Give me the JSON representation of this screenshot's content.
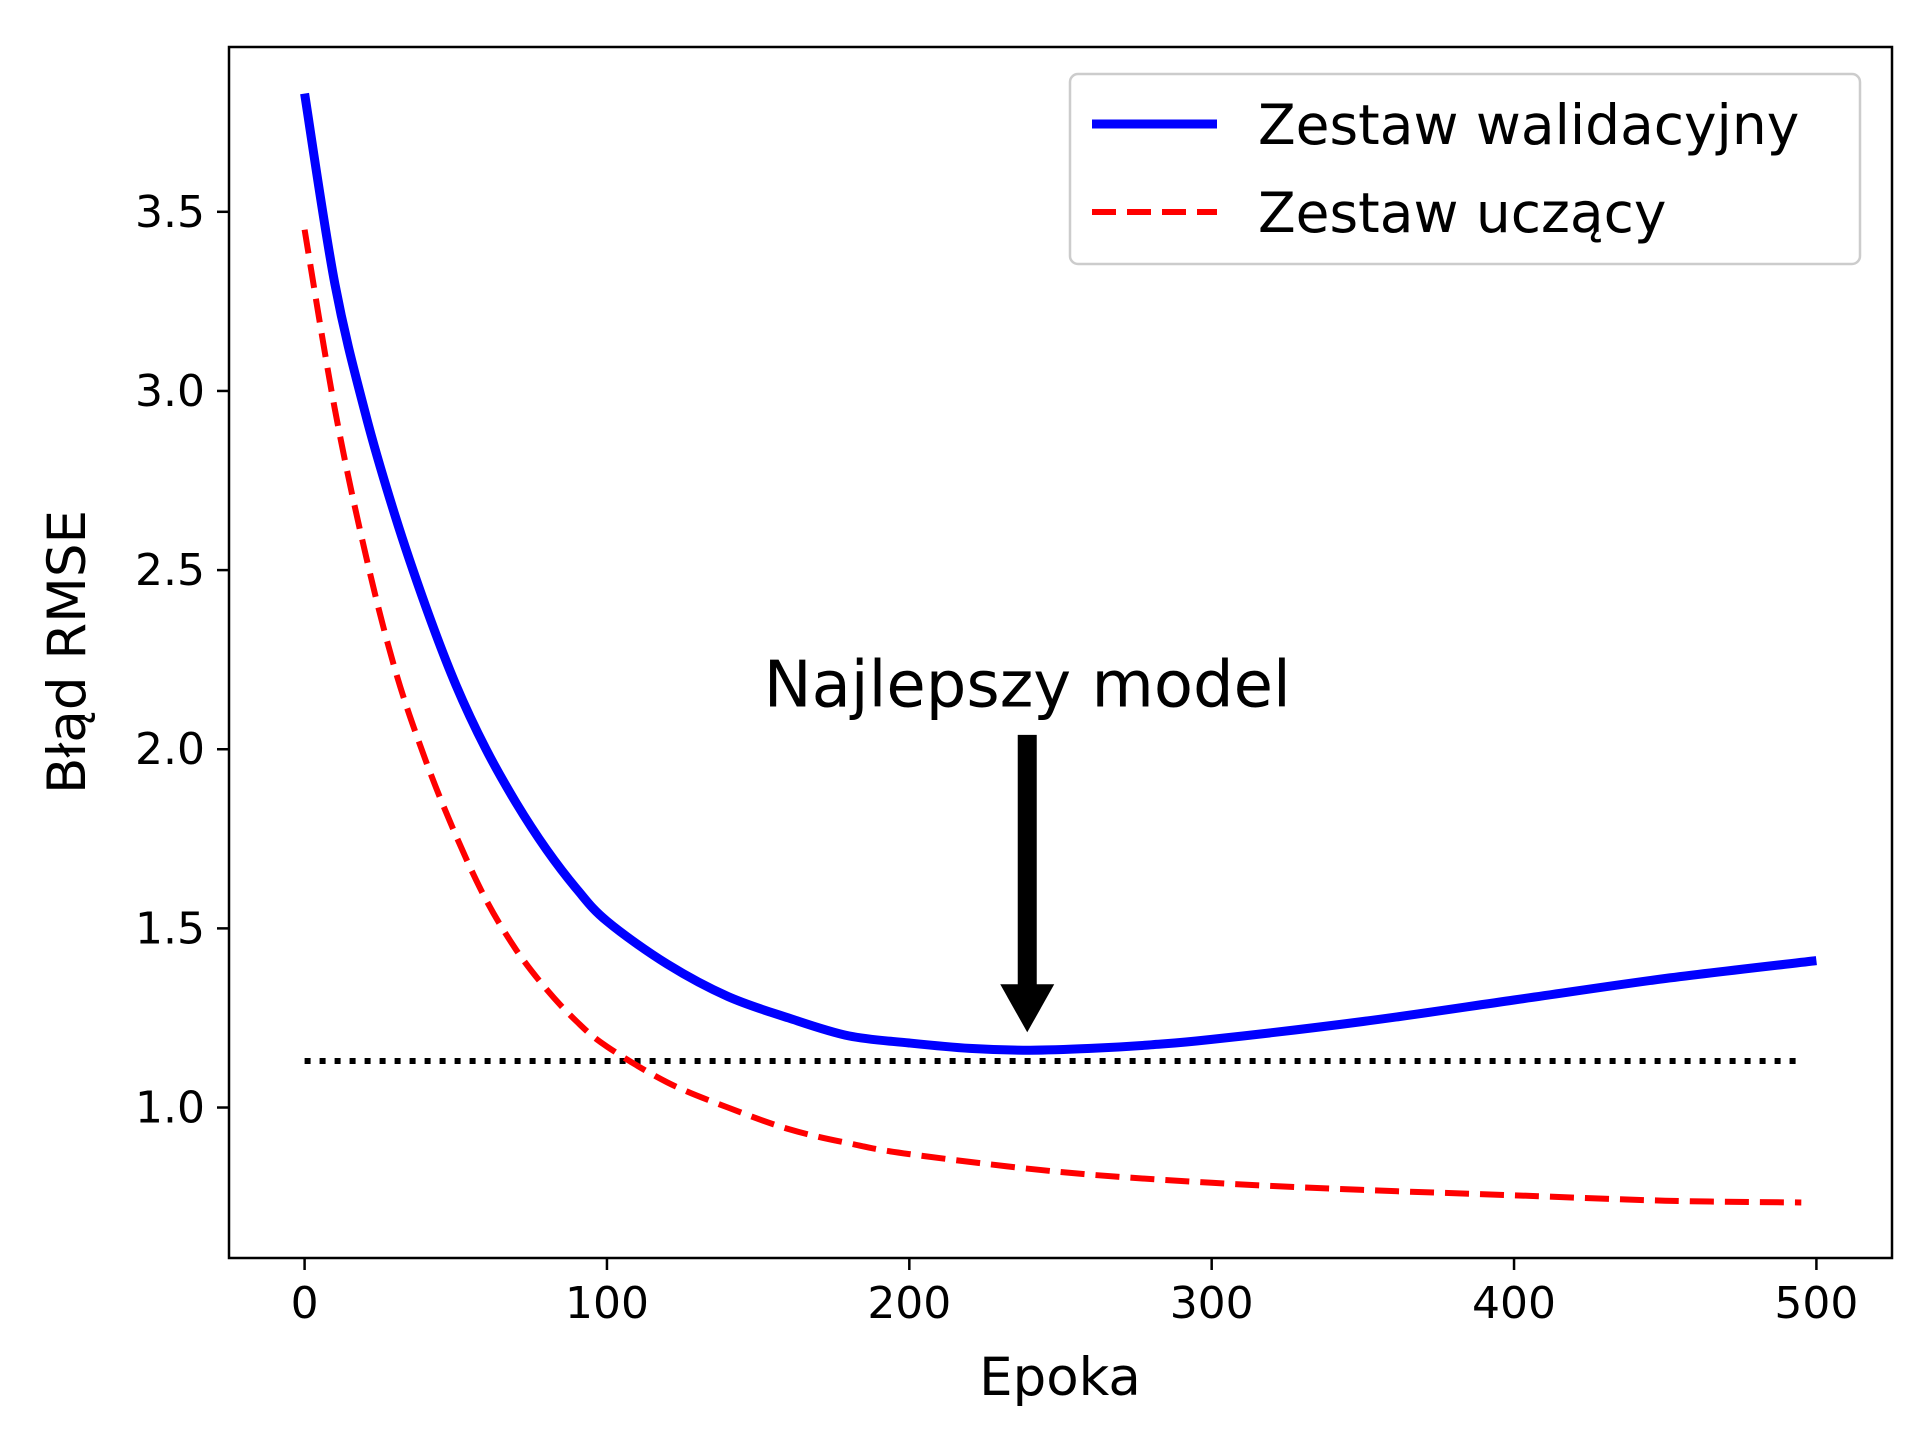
{
  "chart_data": {
    "type": "line",
    "title": "",
    "xlabel": "Epoka",
    "ylabel": "Błąd RMSE",
    "xlim": [
      -25,
      525
    ],
    "ylim": [
      0.58,
      3.96
    ],
    "x_ticks": [
      0,
      100,
      200,
      300,
      400,
      500
    ],
    "x_tick_labels": [
      "0",
      "100",
      "200",
      "300",
      "400",
      "500"
    ],
    "y_ticks": [
      1.0,
      1.5,
      2.0,
      2.5,
      3.0,
      3.5
    ],
    "y_tick_labels": [
      "1.0",
      "1.5",
      "2.0",
      "2.5",
      "3.0",
      "3.5"
    ],
    "grid": false,
    "legend_position": "top-right",
    "series": [
      {
        "name": "Zestaw walidacyjny",
        "color": "#0000ff",
        "style": "solid",
        "x": [
          0,
          10,
          20,
          30,
          40,
          50,
          60,
          70,
          80,
          90,
          100,
          120,
          140,
          160,
          180,
          200,
          220,
          240,
          260,
          280,
          300,
          350,
          400,
          450,
          500
        ],
        "y": [
          3.83,
          3.3,
          2.94,
          2.65,
          2.4,
          2.18,
          2.0,
          1.85,
          1.72,
          1.61,
          1.52,
          1.4,
          1.31,
          1.25,
          1.2,
          1.18,
          1.165,
          1.16,
          1.165,
          1.175,
          1.19,
          1.24,
          1.3,
          1.36,
          1.41
        ]
      },
      {
        "name": "Zestaw uczący",
        "color": "#ff0000",
        "style": "dashed",
        "x": [
          0,
          10,
          20,
          30,
          40,
          50,
          60,
          70,
          80,
          90,
          100,
          120,
          140,
          160,
          180,
          200,
          250,
          300,
          350,
          400,
          450,
          495
        ],
        "y": [
          3.45,
          2.95,
          2.55,
          2.22,
          1.97,
          1.76,
          1.58,
          1.44,
          1.33,
          1.24,
          1.17,
          1.07,
          1.0,
          0.94,
          0.9,
          0.87,
          0.82,
          0.79,
          0.77,
          0.755,
          0.74,
          0.735
        ]
      }
    ],
    "reference_line": {
      "y": 1.13,
      "x_start": 0,
      "x_end": 495,
      "color": "#000000",
      "style": "dotted"
    },
    "annotation": {
      "text": "Najlepszy model",
      "text_x": 239,
      "text_y": 2.18,
      "arrow_from_y": 2.04,
      "arrow_to_y": 1.21,
      "arrow_x": 239
    }
  }
}
